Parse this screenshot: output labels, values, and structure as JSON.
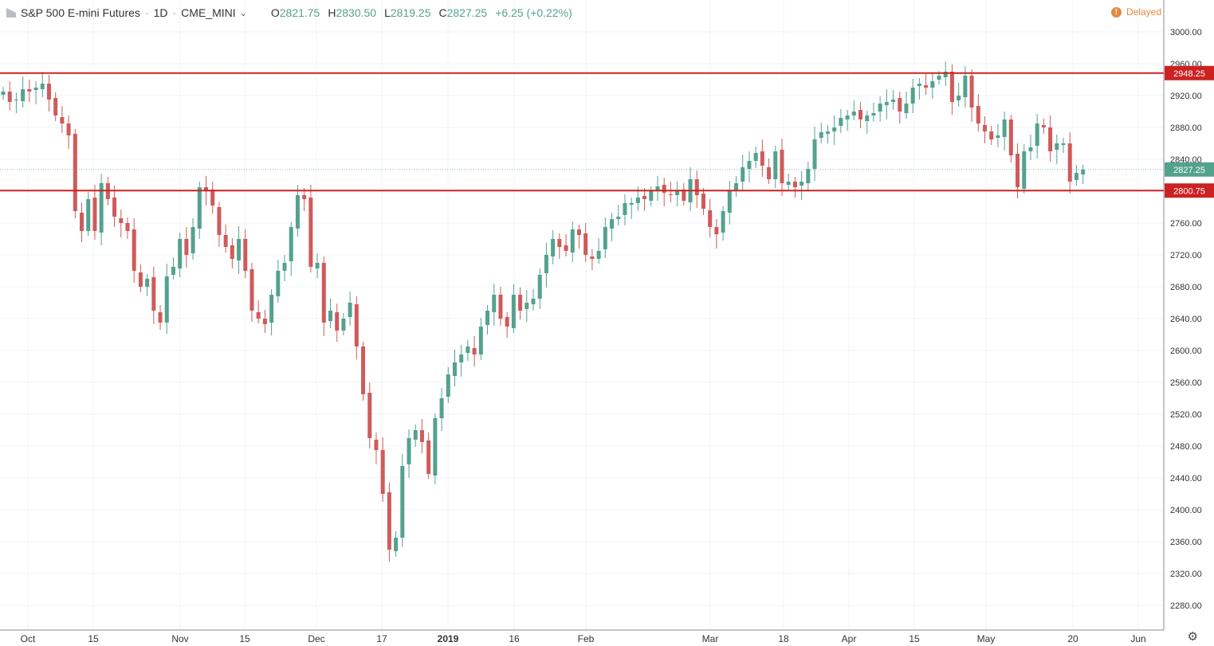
{
  "header": {
    "symbol": "S&P 500 E-mini Futures",
    "interval": "1D",
    "exchange": "CME_MINI",
    "open_label": "O",
    "open": "2821.75",
    "high_label": "H",
    "high": "2830.50",
    "low_label": "L",
    "low": "2819.25",
    "close_label": "C",
    "close": "2827.25",
    "change": "+6.25 (+0.22%)",
    "delayed": "Delayed"
  },
  "colors": {
    "up": "#53a28e",
    "down": "#d05a5a",
    "level": "#cc2222",
    "grid": "#f0f3fa",
    "text": "#333333"
  },
  "icons": [
    "symbol-logo-icon",
    "chevron-down-icon",
    "delayed-warning-icon",
    "gear-icon"
  ],
  "chart_data": {
    "type": "candlestick",
    "ylim": [
      2240,
      3020
    ],
    "yticks": [
      2280,
      2320,
      2360,
      2400,
      2440,
      2480,
      2520,
      2560,
      2600,
      2640,
      2680,
      2720,
      2760,
      2800,
      2840,
      2880,
      2920,
      2960,
      3000
    ],
    "xticks": [
      {
        "label": "Oct",
        "bold": false
      },
      {
        "label": "15",
        "bold": false
      },
      {
        "label": "Nov",
        "bold": false
      },
      {
        "label": "15",
        "bold": false
      },
      {
        "label": "Dec",
        "bold": false
      },
      {
        "label": "17",
        "bold": false
      },
      {
        "label": "2019",
        "bold": true
      },
      {
        "label": "16",
        "bold": false
      },
      {
        "label": "Feb",
        "bold": false
      },
      {
        "label": "Mar",
        "bold": false
      },
      {
        "label": "18",
        "bold": false
      },
      {
        "label": "Apr",
        "bold": false
      },
      {
        "label": "15",
        "bold": false
      },
      {
        "label": "May",
        "bold": false
      },
      {
        "label": "20",
        "bold": false
      },
      {
        "label": "Jun",
        "bold": false
      }
    ],
    "levels": [
      {
        "value": 2948.25,
        "label": "2948.25"
      },
      {
        "value": 2800.75,
        "label": "2800.75"
      }
    ],
    "last_price": {
      "value": 2827.25,
      "label": "2827.25"
    },
    "closes": [
      2925,
      2912,
      2915,
      2928,
      2925,
      2930,
      2935,
      2915,
      2895,
      2885,
      2870,
      2775,
      2750,
      2790,
      2750,
      2810,
      2790,
      2768,
      2760,
      2750,
      2700,
      2680,
      2690,
      2650,
      2635,
      2693,
      2705,
      2740,
      2720,
      2755,
      2805,
      2800,
      2782,
      2745,
      2730,
      2715,
      2740,
      2700,
      2650,
      2640,
      2633,
      2670,
      2700,
      2710,
      2755,
      2795,
      2790,
      2705,
      2710,
      2635,
      2650,
      2625,
      2640,
      2660,
      2605,
      2545,
      2490,
      2475,
      2420,
      2350,
      2365,
      2455,
      2490,
      2500,
      2485,
      2445,
      2515,
      2540,
      2570,
      2585,
      2595,
      2605,
      2595,
      2630,
      2650,
      2670,
      2640,
      2630,
      2670,
      2650,
      2660,
      2665,
      2695,
      2720,
      2740,
      2730,
      2725,
      2752,
      2745,
      2720,
      2715,
      2725,
      2755,
      2765,
      2768,
      2785,
      2785,
      2792,
      2790,
      2800,
      2806,
      2798,
      2795,
      2800,
      2788,
      2815,
      2795,
      2778,
      2755,
      2746,
      2775,
      2800,
      2810,
      2830,
      2838,
      2848,
      2832,
      2815,
      2850,
      2810,
      2812,
      2805,
      2812,
      2828,
      2865,
      2874,
      2875,
      2880,
      2892,
      2895,
      2900,
      2890,
      2895,
      2898,
      2910,
      2912,
      2915,
      2900,
      2910,
      2930,
      2935,
      2930,
      2938,
      2945,
      2950,
      2912,
      2920,
      2945,
      2905,
      2885,
      2875,
      2865,
      2870,
      2890,
      2845,
      2805,
      2850,
      2855,
      2885,
      2880,
      2850,
      2860,
      2860,
      2812,
      2823,
      2827
    ]
  }
}
